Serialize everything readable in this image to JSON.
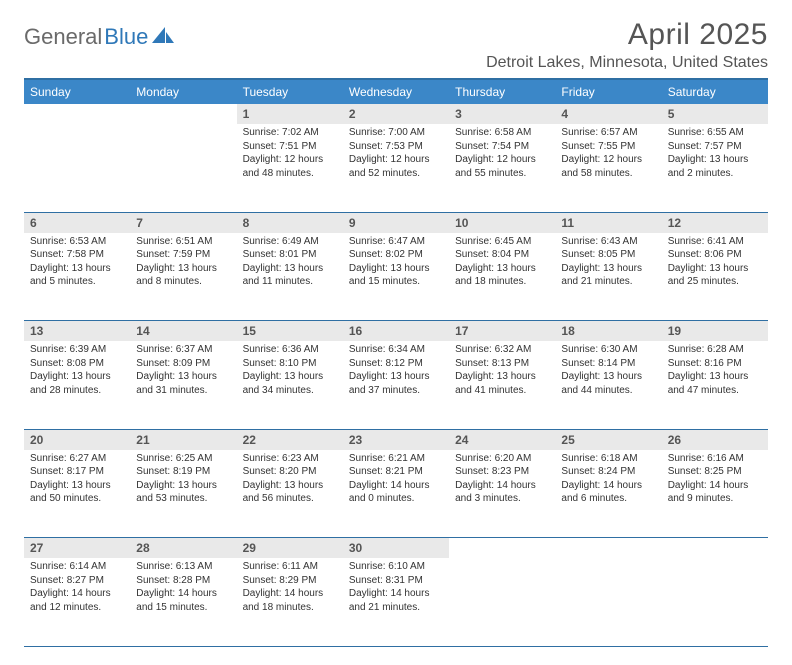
{
  "brand": {
    "part1": "General",
    "part2": "Blue"
  },
  "title": "April 2025",
  "location": "Detroit Lakes, Minnesota, United States",
  "colors": {
    "header_bg": "#3b87c8",
    "header_border": "#2f6fa3",
    "daynum_bg": "#e9e9e9",
    "text_gray": "#555555",
    "brand_gray": "#6a6a6a",
    "brand_blue": "#2f78b8",
    "body_text": "#333333",
    "white": "#ffffff"
  },
  "weekdays": [
    "Sunday",
    "Monday",
    "Tuesday",
    "Wednesday",
    "Thursday",
    "Friday",
    "Saturday"
  ],
  "weeks": [
    {
      "nums": [
        "",
        "",
        "1",
        "2",
        "3",
        "4",
        "5"
      ],
      "cells": [
        null,
        null,
        {
          "sunrise": "7:02 AM",
          "sunset": "7:51 PM",
          "daylight": "12 hours and 48 minutes."
        },
        {
          "sunrise": "7:00 AM",
          "sunset": "7:53 PM",
          "daylight": "12 hours and 52 minutes."
        },
        {
          "sunrise": "6:58 AM",
          "sunset": "7:54 PM",
          "daylight": "12 hours and 55 minutes."
        },
        {
          "sunrise": "6:57 AM",
          "sunset": "7:55 PM",
          "daylight": "12 hours and 58 minutes."
        },
        {
          "sunrise": "6:55 AM",
          "sunset": "7:57 PM",
          "daylight": "13 hours and 2 minutes."
        }
      ]
    },
    {
      "nums": [
        "6",
        "7",
        "8",
        "9",
        "10",
        "11",
        "12"
      ],
      "cells": [
        {
          "sunrise": "6:53 AM",
          "sunset": "7:58 PM",
          "daylight": "13 hours and 5 minutes."
        },
        {
          "sunrise": "6:51 AM",
          "sunset": "7:59 PM",
          "daylight": "13 hours and 8 minutes."
        },
        {
          "sunrise": "6:49 AM",
          "sunset": "8:01 PM",
          "daylight": "13 hours and 11 minutes."
        },
        {
          "sunrise": "6:47 AM",
          "sunset": "8:02 PM",
          "daylight": "13 hours and 15 minutes."
        },
        {
          "sunrise": "6:45 AM",
          "sunset": "8:04 PM",
          "daylight": "13 hours and 18 minutes."
        },
        {
          "sunrise": "6:43 AM",
          "sunset": "8:05 PM",
          "daylight": "13 hours and 21 minutes."
        },
        {
          "sunrise": "6:41 AM",
          "sunset": "8:06 PM",
          "daylight": "13 hours and 25 minutes."
        }
      ]
    },
    {
      "nums": [
        "13",
        "14",
        "15",
        "16",
        "17",
        "18",
        "19"
      ],
      "cells": [
        {
          "sunrise": "6:39 AM",
          "sunset": "8:08 PM",
          "daylight": "13 hours and 28 minutes."
        },
        {
          "sunrise": "6:37 AM",
          "sunset": "8:09 PM",
          "daylight": "13 hours and 31 minutes."
        },
        {
          "sunrise": "6:36 AM",
          "sunset": "8:10 PM",
          "daylight": "13 hours and 34 minutes."
        },
        {
          "sunrise": "6:34 AM",
          "sunset": "8:12 PM",
          "daylight": "13 hours and 37 minutes."
        },
        {
          "sunrise": "6:32 AM",
          "sunset": "8:13 PM",
          "daylight": "13 hours and 41 minutes."
        },
        {
          "sunrise": "6:30 AM",
          "sunset": "8:14 PM",
          "daylight": "13 hours and 44 minutes."
        },
        {
          "sunrise": "6:28 AM",
          "sunset": "8:16 PM",
          "daylight": "13 hours and 47 minutes."
        }
      ]
    },
    {
      "nums": [
        "20",
        "21",
        "22",
        "23",
        "24",
        "25",
        "26"
      ],
      "cells": [
        {
          "sunrise": "6:27 AM",
          "sunset": "8:17 PM",
          "daylight": "13 hours and 50 minutes."
        },
        {
          "sunrise": "6:25 AM",
          "sunset": "8:19 PM",
          "daylight": "13 hours and 53 minutes."
        },
        {
          "sunrise": "6:23 AM",
          "sunset": "8:20 PM",
          "daylight": "13 hours and 56 minutes."
        },
        {
          "sunrise": "6:21 AM",
          "sunset": "8:21 PM",
          "daylight": "14 hours and 0 minutes."
        },
        {
          "sunrise": "6:20 AM",
          "sunset": "8:23 PM",
          "daylight": "14 hours and 3 minutes."
        },
        {
          "sunrise": "6:18 AM",
          "sunset": "8:24 PM",
          "daylight": "14 hours and 6 minutes."
        },
        {
          "sunrise": "6:16 AM",
          "sunset": "8:25 PM",
          "daylight": "14 hours and 9 minutes."
        }
      ]
    },
    {
      "nums": [
        "27",
        "28",
        "29",
        "30",
        "",
        "",
        ""
      ],
      "cells": [
        {
          "sunrise": "6:14 AM",
          "sunset": "8:27 PM",
          "daylight": "14 hours and 12 minutes."
        },
        {
          "sunrise": "6:13 AM",
          "sunset": "8:28 PM",
          "daylight": "14 hours and 15 minutes."
        },
        {
          "sunrise": "6:11 AM",
          "sunset": "8:29 PM",
          "daylight": "14 hours and 18 minutes."
        },
        {
          "sunrise": "6:10 AM",
          "sunset": "8:31 PM",
          "daylight": "14 hours and 21 minutes."
        },
        null,
        null,
        null
      ]
    }
  ],
  "labels": {
    "sunrise": "Sunrise:",
    "sunset": "Sunset:",
    "daylight": "Daylight:"
  }
}
